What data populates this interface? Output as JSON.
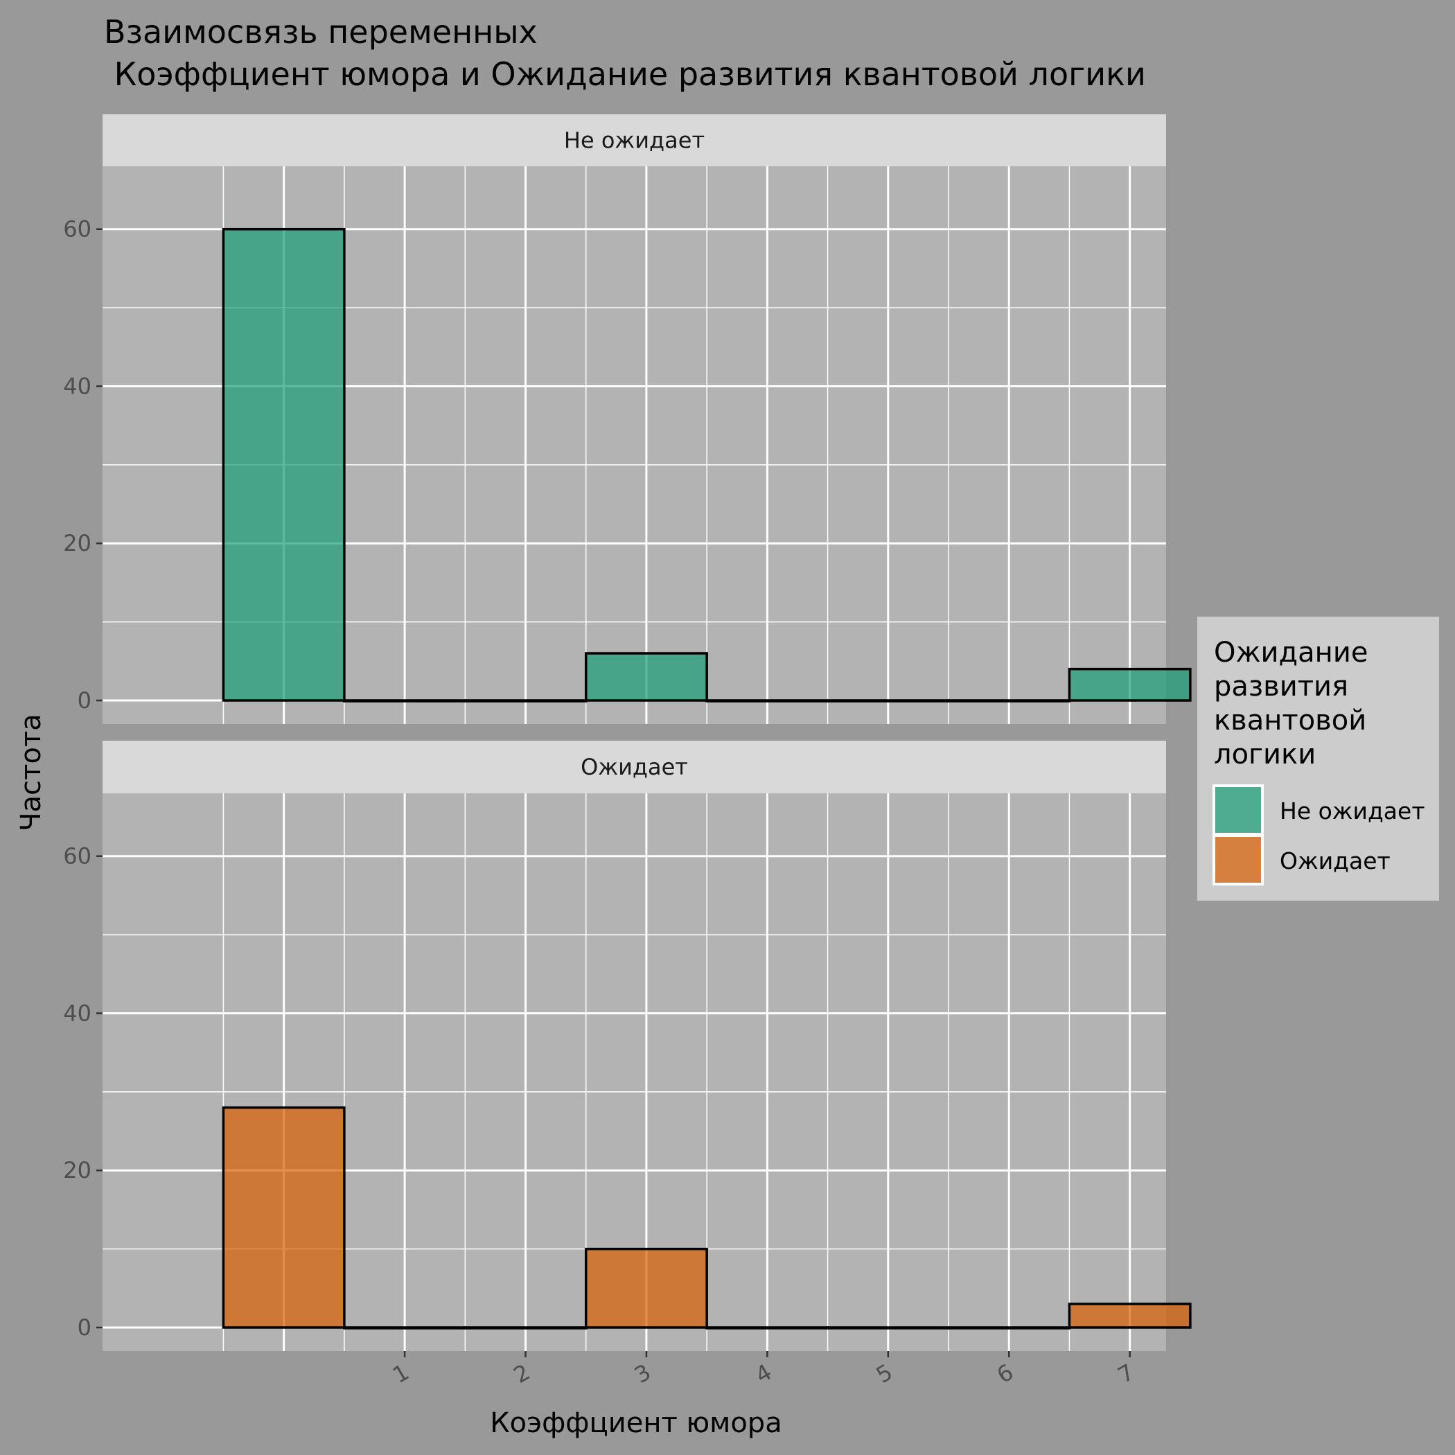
{
  "chart_data": {
    "type": "bar",
    "title_line1": "Взаимосвязь переменных",
    "title_line2": " Коэффциент юмора и Ожидание развития квантовой логики",
    "xlabel": "Коэффциент юмора",
    "ylabel": "Частота",
    "x_ticks": [
      "1",
      "2",
      "3",
      "4",
      "5",
      "6",
      "7"
    ],
    "xlim": [
      -1.5,
      7.3
    ],
    "ylim": [
      -3,
      68
    ],
    "y_ticks": [
      0,
      20,
      40,
      60
    ],
    "bin_width": 1,
    "grid": true,
    "legend": {
      "title_lines": [
        "Ожидание",
        "развития",
        "квантовой",
        "логики"
      ],
      "position": "right"
    },
    "facets": [
      {
        "label": "Не ожидает",
        "color": "#1B9E77",
        "bars": [
          {
            "x": 0,
            "value": 60
          },
          {
            "x": 1,
            "value": 0
          },
          {
            "x": 2,
            "value": 0
          },
          {
            "x": 3,
            "value": 6
          },
          {
            "x": 4,
            "value": 0
          },
          {
            "x": 5,
            "value": 0
          },
          {
            "x": 6,
            "value": 0
          },
          {
            "x": 7,
            "value": 4
          }
        ]
      },
      {
        "label": "Ожидает",
        "color": "#D95F02",
        "bars": [
          {
            "x": 0,
            "value": 28
          },
          {
            "x": 1,
            "value": 0
          },
          {
            "x": 2,
            "value": 0
          },
          {
            "x": 3,
            "value": 10
          },
          {
            "x": 4,
            "value": 0
          },
          {
            "x": 5,
            "value": 0
          },
          {
            "x": 6,
            "value": 0
          },
          {
            "x": 7,
            "value": 3
          }
        ]
      }
    ]
  }
}
